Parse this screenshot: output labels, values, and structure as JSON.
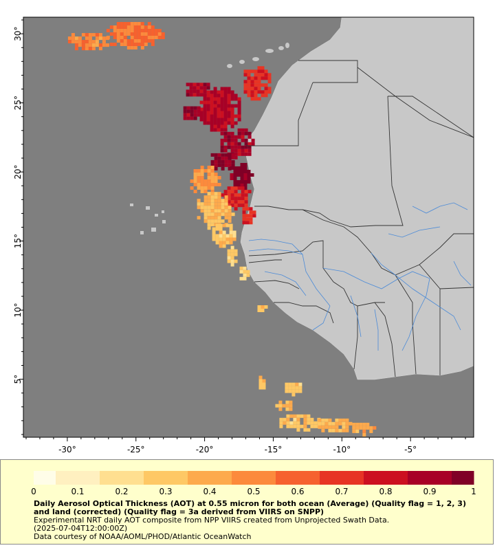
{
  "chart_data": {
    "type": "heatmap",
    "map_region": "West Africa / Eastern Atlantic",
    "xlim": [
      -33.2,
      -0.4
    ],
    "ylim": [
      0.8,
      31.2
    ],
    "x_ticks": [
      -30,
      -25,
      -20,
      -15,
      -10,
      -5
    ],
    "x_tick_labels": [
      "-30°",
      "-25°",
      "-20°",
      "-15°",
      "-10°",
      "-5°"
    ],
    "y_ticks": [
      5,
      10,
      15,
      20,
      25,
      30
    ],
    "y_tick_labels": [
      "5°",
      "10°",
      "15°",
      "20°",
      "25°",
      "30°"
    ],
    "colorbar": {
      "min": 0,
      "max": 1,
      "tick_values": [
        0,
        0.1,
        0.2,
        0.3,
        0.4,
        0.5,
        0.6,
        0.7,
        0.8,
        0.9,
        1
      ],
      "tick_labels": [
        "0",
        "0.1",
        "0.2",
        "0.3",
        "0.4",
        "0.5",
        "0.6",
        "0.7",
        "0.8",
        "0.9",
        "1"
      ],
      "colors": [
        "#fffde8",
        "#fff0c0",
        "#ffdf90",
        "#fec865",
        "#fdaa4c",
        "#fc8a3c",
        "#f6612e",
        "#e73424",
        "#cc1020",
        "#a80026",
        "#800026"
      ]
    },
    "colors": {
      "ocean": "#7f7f7f",
      "land": "#c8c8c8",
      "border": "#333333",
      "river": "#4a8ad8"
    },
    "aot_regions": [
      {
        "lon": -19.0,
        "lat": 24.7,
        "rx": 1.6,
        "ry": 1.7,
        "aot": 0.85
      },
      {
        "lon": -16.3,
        "lat": 26.6,
        "rx": 1.1,
        "ry": 1.3,
        "aot": 0.72
      },
      {
        "lon": -20.6,
        "lat": 26.1,
        "rx": 1.0,
        "ry": 0.6,
        "aot": 0.9
      },
      {
        "lon": -21.1,
        "lat": 24.4,
        "rx": 0.7,
        "ry": 0.6,
        "aot": 0.9
      },
      {
        "lon": -17.8,
        "lat": 22.2,
        "rx": 1.3,
        "ry": 1.2,
        "aot": 0.9
      },
      {
        "lon": -18.8,
        "lat": 20.9,
        "rx": 1.0,
        "ry": 0.7,
        "aot": 0.95
      },
      {
        "lon": -17.5,
        "lat": 19.8,
        "rx": 0.9,
        "ry": 1.1,
        "aot": 1.0
      },
      {
        "lon": -17.9,
        "lat": 18.3,
        "rx": 1.2,
        "ry": 0.9,
        "aot": 0.75
      },
      {
        "lon": -16.9,
        "lat": 17.0,
        "rx": 0.6,
        "ry": 0.7,
        "aot": 0.7
      },
      {
        "lon": -20.1,
        "lat": 19.6,
        "rx": 1.2,
        "ry": 1.1,
        "aot": 0.45
      },
      {
        "lon": -19.4,
        "lat": 17.4,
        "rx": 1.4,
        "ry": 1.4,
        "aot": 0.35
      },
      {
        "lon": -18.7,
        "lat": 15.6,
        "rx": 1.0,
        "ry": 0.9,
        "aot": 0.3
      },
      {
        "lon": -18.1,
        "lat": 14.1,
        "rx": 0.5,
        "ry": 0.8,
        "aot": 0.25
      },
      {
        "lon": -17.3,
        "lat": 12.8,
        "rx": 0.4,
        "ry": 0.6,
        "aot": 0.25
      },
      {
        "lon": -25.2,
        "lat": 30.0,
        "rx": 2.2,
        "ry": 1.1,
        "aot": 0.55
      },
      {
        "lon": -28.6,
        "lat": 29.6,
        "rx": 1.6,
        "ry": 0.7,
        "aot": 0.5
      },
      {
        "lon": -15.9,
        "lat": 10.3,
        "rx": 0.5,
        "ry": 0.3,
        "aot": 0.3
      },
      {
        "lon": -14.3,
        "lat": 3.2,
        "rx": 0.8,
        "ry": 0.5,
        "aot": 0.35
      },
      {
        "lon": -13.2,
        "lat": 2.0,
        "rx": 1.6,
        "ry": 0.7,
        "aot": 0.3
      },
      {
        "lon": -10.7,
        "lat": 1.8,
        "rx": 1.3,
        "ry": 0.6,
        "aot": 0.35
      },
      {
        "lon": -8.6,
        "lat": 1.6,
        "rx": 0.9,
        "ry": 0.5,
        "aot": 0.4
      },
      {
        "lon": -13.6,
        "lat": 4.5,
        "rx": 0.8,
        "ry": 0.5,
        "aot": 0.3
      },
      {
        "lon": -16.0,
        "lat": 4.9,
        "rx": 0.3,
        "ry": 0.6,
        "aot": 0.35
      }
    ]
  },
  "legend": {
    "title": "Daily Aerosol Optical Thickness (AOT) at 0.55 micron for both ocean (Average) (Quality flag = 1, 2, 3) and land (corrected) (Quality flag = 3a derived from VIIRS on SNPP)",
    "subtitle_line1": "Experimental NRT daily AOT composite from NPP VIIRS created from Unprojected Swath Data.",
    "subtitle_line2": "(2025-07-04T12:00:00Z)",
    "credit": "Data courtesy of NOAA/AOML/PHOD/Atlantic OceanWatch"
  }
}
